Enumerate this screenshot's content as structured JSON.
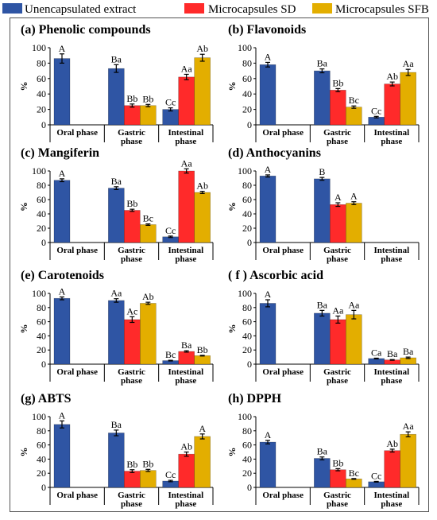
{
  "legend": [
    {
      "label": "Unencapsulated extract",
      "color": "#2F55A4"
    },
    {
      "label": "Microcapsules SD",
      "color": "#FF2A2A"
    },
    {
      "label": "Microcapsules SFB",
      "color": "#E3AE00"
    }
  ],
  "chart_data": [
    {
      "type": "bar",
      "title": "(a) Phenolic compounds",
      "ylabel": "%",
      "ylim": [
        0,
        100
      ],
      "yticks": [
        0,
        20,
        40,
        60,
        80,
        100
      ],
      "grid": false,
      "categories": [
        [
          "Oral phase"
        ],
        [
          "Gastric",
          "phase"
        ],
        [
          "Intestinal",
          "phase"
        ]
      ],
      "series": [
        {
          "name": "Unencapsulated extract",
          "values": [
            86,
            73,
            20
          ],
          "errors": [
            6,
            5,
            2
          ],
          "labels": [
            "A",
            "Ba",
            "Cc"
          ]
        },
        {
          "name": "Microcapsules SD",
          "values": [
            null,
            25,
            62
          ],
          "errors": [
            null,
            2,
            3.5
          ],
          "labels": [
            null,
            "Bb",
            "Aa"
          ]
        },
        {
          "name": "Microcapsules SFB",
          "values": [
            null,
            25,
            87
          ],
          "errors": [
            null,
            1.5,
            4.5
          ],
          "labels": [
            null,
            "Bb",
            "Ab"
          ]
        }
      ]
    },
    {
      "type": "bar",
      "title": "(b) Flavonoids",
      "ylabel": "%",
      "ylim": [
        0,
        100
      ],
      "yticks": [
        0,
        20,
        40,
        60,
        80,
        100
      ],
      "grid": false,
      "categories": [
        [
          "Oral phase"
        ],
        [
          "Gastric",
          "phase"
        ],
        [
          "Intestinal",
          "phase"
        ]
      ],
      "series": [
        {
          "name": "Unencapsulated extract",
          "values": [
            78,
            70,
            10
          ],
          "errors": [
            3,
            2.5,
            1
          ],
          "labels": [
            "A",
            "Ba",
            "Cc"
          ]
        },
        {
          "name": "Microcapsules SD",
          "values": [
            null,
            45,
            53
          ],
          "errors": [
            null,
            2,
            2.5
          ],
          "labels": [
            null,
            "Bb",
            "Ab"
          ]
        },
        {
          "name": "Microcapsules SFB",
          "values": [
            null,
            23,
            68
          ],
          "errors": [
            null,
            1.5,
            4
          ],
          "labels": [
            null,
            "Bc",
            "Aa"
          ]
        }
      ]
    },
    {
      "type": "bar",
      "title": "(c) Mangiferin",
      "ylabel": "%",
      "ylim": [
        0,
        100
      ],
      "yticks": [
        0,
        20,
        40,
        60,
        80,
        100
      ],
      "grid": false,
      "categories": [
        [
          "Oral phase"
        ],
        [
          "Gastric",
          "phase"
        ],
        [
          "Intestinal",
          "phase"
        ]
      ],
      "series": [
        {
          "name": "Unencapsulated extract",
          "values": [
            87,
            76,
            8
          ],
          "errors": [
            2,
            2,
            1
          ],
          "labels": [
            "A",
            "Ba",
            "Cc"
          ]
        },
        {
          "name": "Microcapsules SD",
          "values": [
            null,
            45,
            100
          ],
          "errors": [
            null,
            1.5,
            3
          ],
          "labels": [
            null,
            "Bb",
            "Aa"
          ]
        },
        {
          "name": "Microcapsules SFB",
          "values": [
            null,
            25,
            70
          ],
          "errors": [
            null,
            1,
            1.5
          ],
          "labels": [
            null,
            "Bc",
            "Ab"
          ]
        }
      ]
    },
    {
      "type": "bar",
      "title": "(d) Anthocyanins",
      "ylabel": "%",
      "ylim": [
        0,
        100
      ],
      "yticks": [
        0,
        20,
        40,
        60,
        80,
        100
      ],
      "grid": false,
      "categories": [
        [
          "Oral phase"
        ],
        [
          "Gastric",
          "phase"
        ],
        [
          "Intestinal",
          "phase"
        ]
      ],
      "series": [
        {
          "name": "Unencapsulated extract",
          "values": [
            93,
            89,
            null
          ],
          "errors": [
            1.5,
            2,
            null
          ],
          "labels": [
            "A",
            "B",
            null
          ]
        },
        {
          "name": "Microcapsules SD",
          "values": [
            null,
            53,
            null
          ],
          "errors": [
            null,
            2.5,
            null
          ],
          "labels": [
            null,
            "A",
            null
          ]
        },
        {
          "name": "Microcapsules SFB",
          "values": [
            null,
            55,
            null
          ],
          "errors": [
            null,
            2,
            null
          ],
          "labels": [
            null,
            "A",
            null
          ]
        }
      ]
    },
    {
      "type": "bar",
      "title": "(e) Carotenoids",
      "ylabel": "%",
      "ylim": [
        0,
        100
      ],
      "yticks": [
        0,
        20,
        40,
        60,
        80,
        100
      ],
      "grid": false,
      "categories": [
        [
          "Oral phase"
        ],
        [
          "Gastric",
          "phase"
        ],
        [
          "Intestinal",
          "phase"
        ]
      ],
      "series": [
        {
          "name": "Unencapsulated extract",
          "values": [
            93,
            90,
            5
          ],
          "errors": [
            2,
            2.5,
            0.5
          ],
          "labels": [
            "A",
            "Aa",
            "Bc"
          ]
        },
        {
          "name": "Microcapsules SD",
          "values": [
            null,
            63,
            18
          ],
          "errors": [
            null,
            4,
            1
          ],
          "labels": [
            null,
            "Ac",
            "Ba"
          ]
        },
        {
          "name": "Microcapsules SFB",
          "values": [
            null,
            86,
            12
          ],
          "errors": [
            null,
            1.5,
            0.5
          ],
          "labels": [
            null,
            "Ab",
            "Bb"
          ]
        }
      ]
    },
    {
      "type": "bar",
      "title": "( f ) Ascorbic acid",
      "ylabel": "%",
      "ylim": [
        0,
        100
      ],
      "yticks": [
        0,
        20,
        40,
        60,
        80,
        100
      ],
      "grid": false,
      "categories": [
        [
          "Oral phase"
        ],
        [
          "Gastric",
          "phase"
        ],
        [
          "Intestinal",
          "phase"
        ]
      ],
      "series": [
        {
          "name": "Unencapsulated extract",
          "values": [
            86,
            72,
            8
          ],
          "errors": [
            5,
            4,
            0.5
          ],
          "labels": [
            "A",
            "Ba",
            "Ca"
          ]
        },
        {
          "name": "Microcapsules SD",
          "values": [
            null,
            63,
            6
          ],
          "errors": [
            null,
            5,
            0.5
          ],
          "labels": [
            null,
            "Aa",
            "Ba"
          ]
        },
        {
          "name": "Microcapsules SFB",
          "values": [
            null,
            70,
            9
          ],
          "errors": [
            null,
            6,
            1
          ],
          "labels": [
            null,
            "Aa",
            "Ba"
          ]
        }
      ]
    },
    {
      "type": "bar",
      "title": "(g) ABTS",
      "ylabel": "%",
      "ylim": [
        0,
        100
      ],
      "yticks": [
        0,
        20,
        40,
        60,
        80,
        100
      ],
      "grid": false,
      "categories": [
        [
          "Oral phase"
        ],
        [
          "Gastric",
          "phase"
        ],
        [
          "Intestinal",
          "phase"
        ]
      ],
      "series": [
        {
          "name": "Unencapsulated extract",
          "values": [
            89,
            77,
            9
          ],
          "errors": [
            5,
            4,
            1
          ],
          "labels": [
            "A",
            "Ba",
            "Cc"
          ]
        },
        {
          "name": "Microcapsules SD",
          "values": [
            null,
            23,
            47
          ],
          "errors": [
            null,
            2,
            3
          ],
          "labels": [
            null,
            "Bb",
            "Ab"
          ]
        },
        {
          "name": "Microcapsules SFB",
          "values": [
            null,
            24,
            72
          ],
          "errors": [
            null,
            1.5,
            3.5
          ],
          "labels": [
            null,
            "Bb",
            "A"
          ]
        }
      ]
    },
    {
      "type": "bar",
      "title": "(h) DPPH",
      "ylabel": "%",
      "ylim": [
        0,
        100
      ],
      "yticks": [
        0,
        20,
        40,
        60,
        80,
        100
      ],
      "grid": false,
      "categories": [
        [
          "Oral phase"
        ],
        [
          "Gastric",
          "phase"
        ],
        [
          "Intestinal",
          "phase"
        ]
      ],
      "series": [
        {
          "name": "Unencapsulated extract",
          "values": [
            64,
            41,
            8
          ],
          "errors": [
            2.5,
            2,
            0.5
          ],
          "labels": [
            "A",
            "Ba",
            "Cc"
          ]
        },
        {
          "name": "Microcapsules SD",
          "values": [
            null,
            25,
            52
          ],
          "errors": [
            null,
            1.5,
            2
          ],
          "labels": [
            null,
            "Bb",
            "Ab"
          ]
        },
        {
          "name": "Microcapsules SFB",
          "values": [
            null,
            12,
            75
          ],
          "errors": [
            null,
            0.5,
            3.5
          ],
          "labels": [
            null,
            "Bc",
            "Aa"
          ]
        }
      ]
    }
  ]
}
